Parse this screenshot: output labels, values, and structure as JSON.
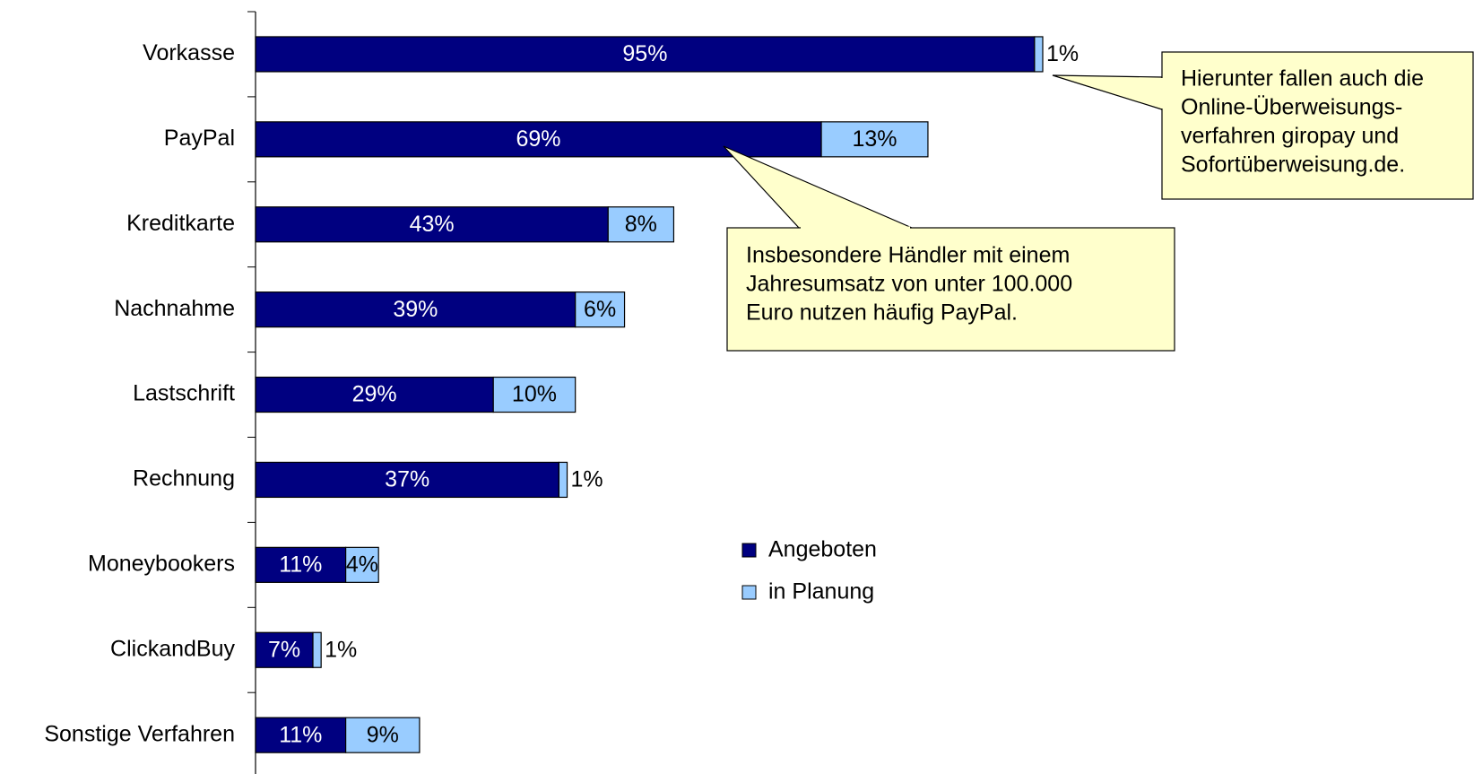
{
  "chart_data": {
    "type": "stacked-barh",
    "categories": [
      "Vorkasse",
      "PayPal",
      "Kreditkarte",
      "Nachnahme",
      "Lastschrift",
      "Rechnung",
      "Moneybookers",
      "ClickandBuy",
      "Sonstige Verfahren"
    ],
    "series": [
      {
        "name": "Angeboten",
        "color": "#000080",
        "values": [
          95,
          69,
          43,
          39,
          29,
          37,
          11,
          7,
          11
        ],
        "value_labels": [
          "95%",
          "69%",
          "43%",
          "39%",
          "29%",
          "37%",
          "11%",
          "7%",
          "11%"
        ]
      },
      {
        "name": "in Planung",
        "color": "#99ccff",
        "values": [
          1,
          13,
          8,
          6,
          10,
          1,
          4,
          1,
          9
        ],
        "value_labels": [
          "1%",
          "13%",
          "8%",
          "6%",
          "10%",
          "1%",
          "4%",
          "1%",
          "9%"
        ]
      }
    ],
    "annotations": [
      {
        "lines": [
          "Hierunter fallen auch die",
          "Online-Überweisungs-",
          "verfahren giropay und",
          "Sofortüberweisung.de."
        ]
      },
      {
        "lines": [
          "Insbesondere Händler mit einem",
          "Jahresumsatz von unter 100.000",
          "Euro nutzen häufig PayPal."
        ]
      }
    ]
  }
}
